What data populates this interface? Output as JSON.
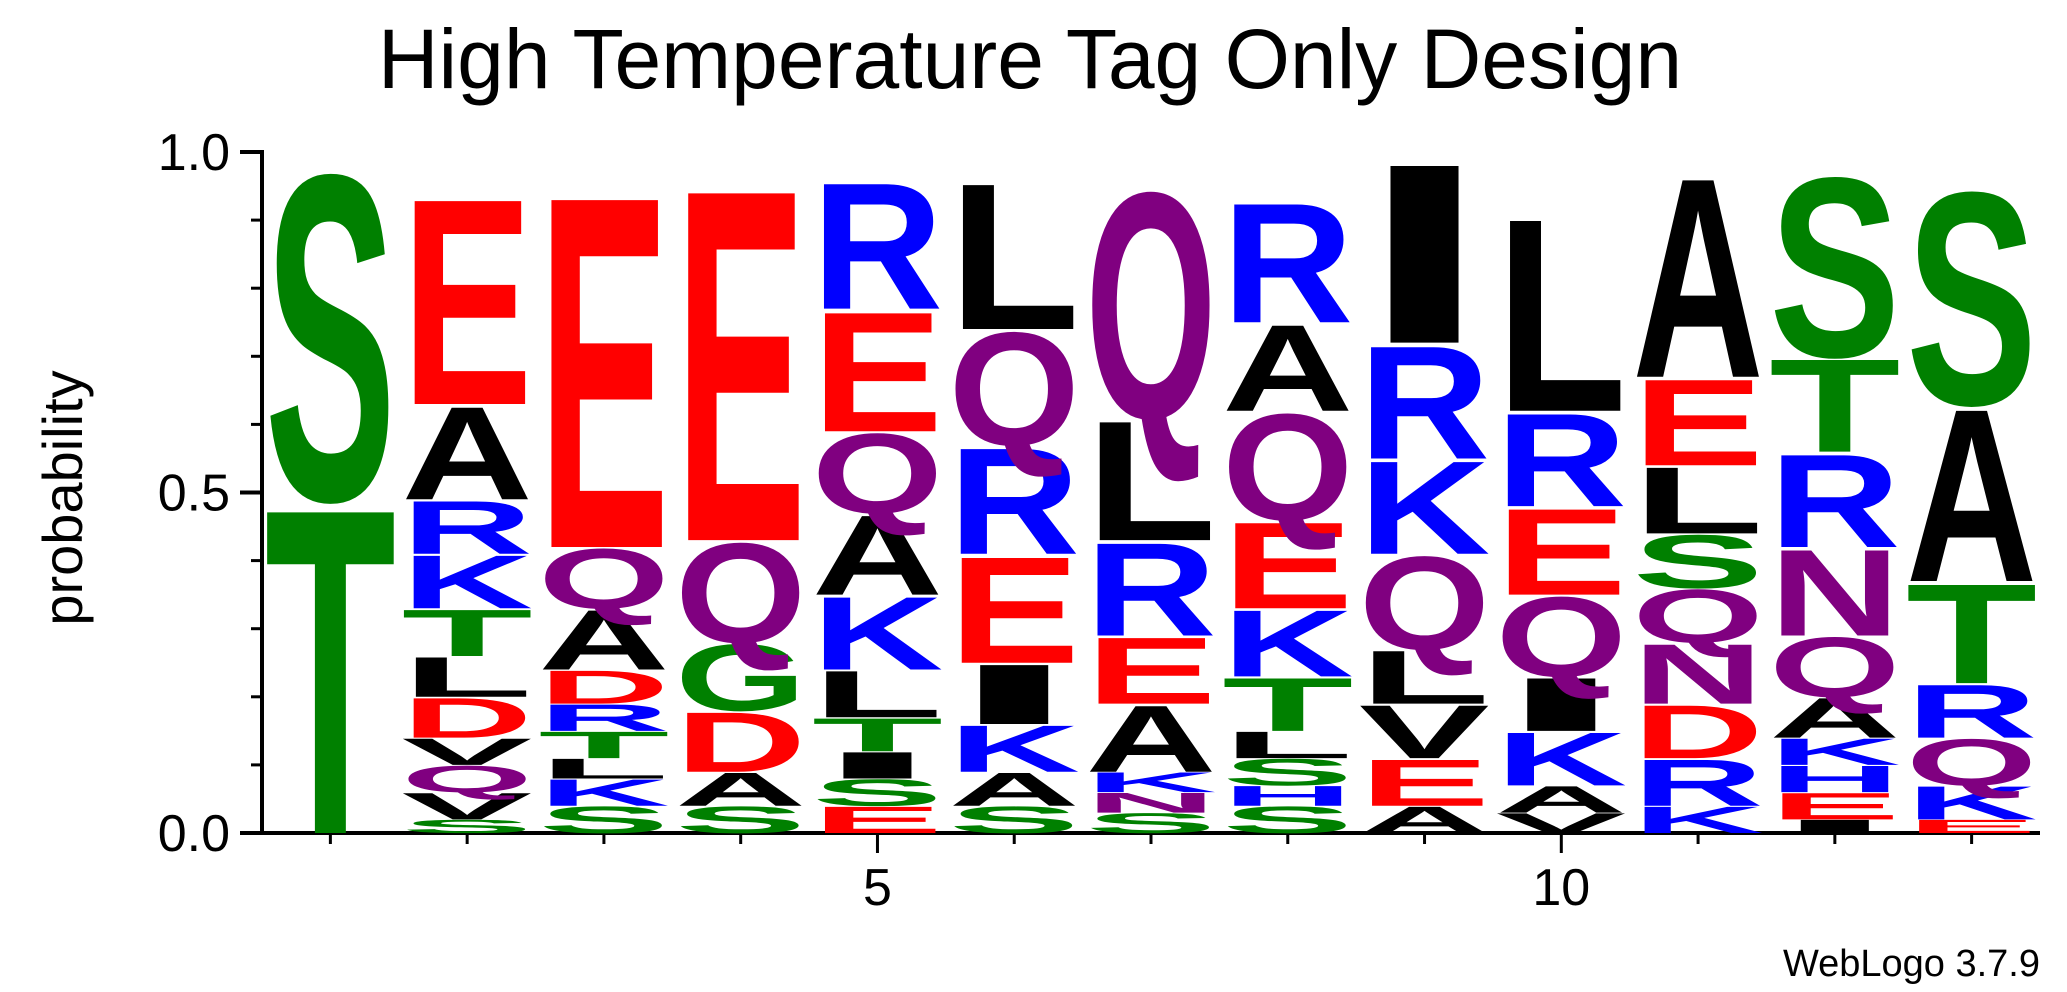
{
  "chart_data": {
    "type": "sequence_logo",
    "title": "High Temperature Tag Only Design",
    "ylabel": "probability",
    "xlabel": "",
    "ylim": [
      0,
      1
    ],
    "y_ticks": [
      "0.0",
      "0.5",
      "1.0"
    ],
    "x_tick_labels": [
      {
        "position": 5,
        "label": "5"
      },
      {
        "position": 10,
        "label": "10"
      }
    ],
    "credit": "WebLogo 3.7.9",
    "color_scheme": {
      "green": "#008000",
      "red": "#ff0000",
      "blue": "#0000ff",
      "purple": "#800080",
      "black": "#000000"
    },
    "residue_colors": {
      "S": "green",
      "T": "green",
      "G": "green",
      "N": "purple",
      "Q": "purple",
      "D": "red",
      "E": "red",
      "R": "blue",
      "K": "blue",
      "H": "blue",
      "A": "black",
      "L": "black",
      "I": "black",
      "V": "black",
      "M": "black",
      "F": "black",
      "P": "black"
    },
    "positions": [
      {
        "position": 1,
        "residues": [
          {
            "letter": "T",
            "probability": 0.49
          },
          {
            "letter": "S",
            "probability": 0.49
          }
        ]
      },
      {
        "position": 2,
        "residues": [
          {
            "letter": "S",
            "probability": 0.02
          },
          {
            "letter": "V",
            "probability": 0.04
          },
          {
            "letter": "Q",
            "probability": 0.04
          },
          {
            "letter": "V",
            "probability": 0.04
          },
          {
            "letter": "D",
            "probability": 0.06
          },
          {
            "letter": "L",
            "probability": 0.06
          },
          {
            "letter": "T",
            "probability": 0.07
          },
          {
            "letter": "K",
            "probability": 0.08
          },
          {
            "letter": "R",
            "probability": 0.08
          },
          {
            "letter": "A",
            "probability": 0.14
          },
          {
            "letter": "E",
            "probability": 0.31
          }
        ]
      },
      {
        "position": 3,
        "residues": [
          {
            "letter": "S",
            "probability": 0.04
          },
          {
            "letter": "K",
            "probability": 0.04
          },
          {
            "letter": "L",
            "probability": 0.03
          },
          {
            "letter": "T",
            "probability": 0.04
          },
          {
            "letter": "R",
            "probability": 0.04
          },
          {
            "letter": "D",
            "probability": 0.05
          },
          {
            "letter": "A",
            "probability": 0.09
          },
          {
            "letter": "Q",
            "probability": 0.09
          },
          {
            "letter": "E",
            "probability": 0.53
          }
        ]
      },
      {
        "position": 4,
        "residues": [
          {
            "letter": "S",
            "probability": 0.04
          },
          {
            "letter": "A",
            "probability": 0.05
          },
          {
            "letter": "D",
            "probability": 0.09
          },
          {
            "letter": "G",
            "probability": 0.1
          },
          {
            "letter": "Q",
            "probability": 0.15
          },
          {
            "letter": "E",
            "probability": 0.53
          }
        ]
      },
      {
        "position": 5,
        "residues": [
          {
            "letter": "E",
            "probability": 0.04
          },
          {
            "letter": "S",
            "probability": 0.04
          },
          {
            "letter": "I",
            "probability": 0.04
          },
          {
            "letter": "T",
            "probability": 0.05
          },
          {
            "letter": "L",
            "probability": 0.07
          },
          {
            "letter": "K",
            "probability": 0.11
          },
          {
            "letter": "A",
            "probability": 0.12
          },
          {
            "letter": "Q",
            "probability": 0.12
          },
          {
            "letter": "E",
            "probability": 0.18
          },
          {
            "letter": "R",
            "probability": 0.19
          }
        ]
      },
      {
        "position": 6,
        "residues": [
          {
            "letter": "S",
            "probability": 0.04
          },
          {
            "letter": "A",
            "probability": 0.05
          },
          {
            "letter": "K",
            "probability": 0.07
          },
          {
            "letter": "I",
            "probability": 0.09
          },
          {
            "letter": "E",
            "probability": 0.16
          },
          {
            "letter": "R",
            "probability": 0.16
          },
          {
            "letter": "Q",
            "probability": 0.17
          },
          {
            "letter": "L",
            "probability": 0.22
          }
        ]
      },
      {
        "position": 7,
        "residues": [
          {
            "letter": "S",
            "probability": 0.03
          },
          {
            "letter": "N",
            "probability": 0.03
          },
          {
            "letter": "K",
            "probability": 0.03
          },
          {
            "letter": "A",
            "probability": 0.1
          },
          {
            "letter": "E",
            "probability": 0.1
          },
          {
            "letter": "R",
            "probability": 0.14
          },
          {
            "letter": "L",
            "probability": 0.18
          },
          {
            "letter": "Q",
            "probability": 0.34
          }
        ]
      },
      {
        "position": 8,
        "residues": [
          {
            "letter": "S",
            "probability": 0.04
          },
          {
            "letter": "H",
            "probability": 0.03
          },
          {
            "letter": "S",
            "probability": 0.04
          },
          {
            "letter": "L",
            "probability": 0.04
          },
          {
            "letter": "T",
            "probability": 0.08
          },
          {
            "letter": "K",
            "probability": 0.1
          },
          {
            "letter": "E",
            "probability": 0.13
          },
          {
            "letter": "Q",
            "probability": 0.16
          },
          {
            "letter": "A",
            "probability": 0.13
          },
          {
            "letter": "R",
            "probability": 0.18
          }
        ]
      },
      {
        "position": 9,
        "residues": [
          {
            "letter": "A",
            "probability": 0.04
          },
          {
            "letter": "E",
            "probability": 0.07
          },
          {
            "letter": "V",
            "probability": 0.08
          },
          {
            "letter": "L",
            "probability": 0.08
          },
          {
            "letter": "Q",
            "probability": 0.14
          },
          {
            "letter": "K",
            "probability": 0.14
          },
          {
            "letter": "R",
            "probability": 0.17
          },
          {
            "letter": "I",
            "probability": 0.27
          }
        ]
      },
      {
        "position": 10,
        "residues": [
          {
            "letter": "V",
            "probability": 0.03
          },
          {
            "letter": "A",
            "probability": 0.04
          },
          {
            "letter": "K",
            "probability": 0.08
          },
          {
            "letter": "I",
            "probability": 0.08
          },
          {
            "letter": "Q",
            "probability": 0.12
          },
          {
            "letter": "E",
            "probability": 0.13
          },
          {
            "letter": "R",
            "probability": 0.14
          },
          {
            "letter": "L",
            "probability": 0.29
          }
        ]
      },
      {
        "position": 11,
        "residues": [
          {
            "letter": "K",
            "probability": 0.04
          },
          {
            "letter": "R",
            "probability": 0.07
          },
          {
            "letter": "D",
            "probability": 0.08
          },
          {
            "letter": "N",
            "probability": 0.09
          },
          {
            "letter": "Q",
            "probability": 0.08
          },
          {
            "letter": "S",
            "probability": 0.08
          },
          {
            "letter": "L",
            "probability": 0.1
          },
          {
            "letter": "E",
            "probability": 0.13
          },
          {
            "letter": "A",
            "probability": 0.3
          }
        ]
      },
      {
        "position": 12,
        "residues": [
          {
            "letter": "I",
            "probability": 0.02
          },
          {
            "letter": "E",
            "probability": 0.04
          },
          {
            "letter": "H",
            "probability": 0.04
          },
          {
            "letter": "K",
            "probability": 0.04
          },
          {
            "letter": "A",
            "probability": 0.06
          },
          {
            "letter": "Q",
            "probability": 0.09
          },
          {
            "letter": "N",
            "probability": 0.13
          },
          {
            "letter": "R",
            "probability": 0.14
          },
          {
            "letter": "T",
            "probability": 0.14
          },
          {
            "letter": "S",
            "probability": 0.27
          }
        ]
      },
      {
        "position": 13,
        "residues": [
          {
            "letter": "E",
            "probability": 0.02
          },
          {
            "letter": "K",
            "probability": 0.05
          },
          {
            "letter": "Q",
            "probability": 0.07
          },
          {
            "letter": "R",
            "probability": 0.08
          },
          {
            "letter": "T",
            "probability": 0.15
          },
          {
            "letter": "A",
            "probability": 0.26
          },
          {
            "letter": "S",
            "probability": 0.32
          }
        ]
      }
    ]
  }
}
